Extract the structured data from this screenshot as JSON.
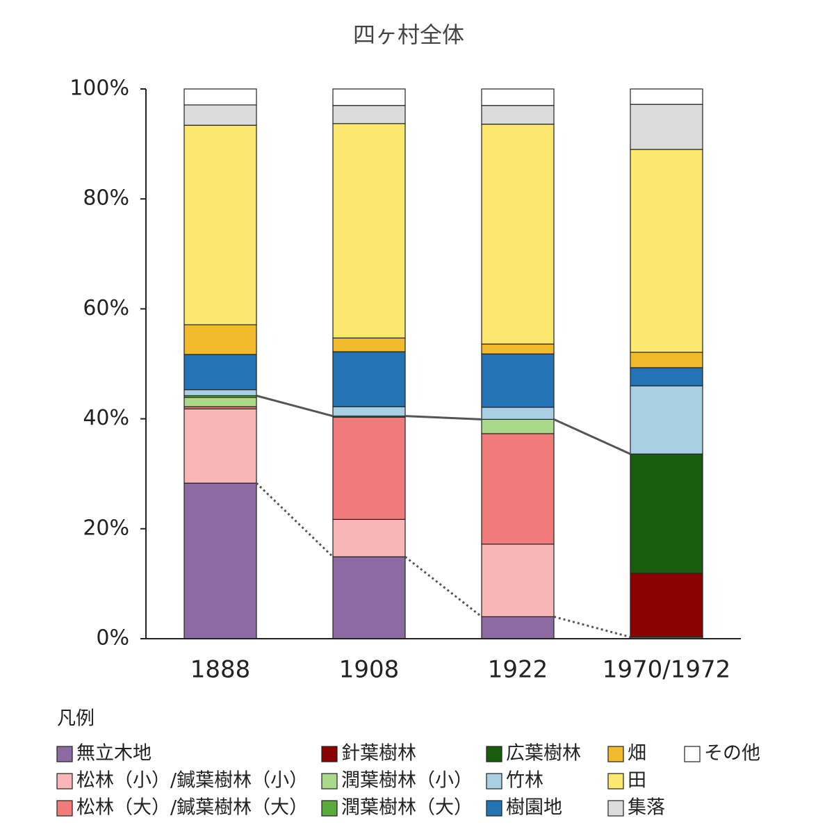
{
  "chart_data": {
    "type": "stacked_bar",
    "title": "四ヶ村全体",
    "legend_title": "凡例",
    "categories": [
      "1888",
      "1908",
      "1922",
      "1970/1972"
    ],
    "ylim": [
      0,
      100
    ],
    "yticks": [
      {
        "value": 0,
        "label": "0%"
      },
      {
        "value": 20,
        "label": "20%"
      },
      {
        "value": 40,
        "label": "40%"
      },
      {
        "value": 60,
        "label": "60%"
      },
      {
        "value": 80,
        "label": "80%"
      },
      {
        "value": 100,
        "label": "100%"
      }
    ],
    "series": [
      {
        "name": "無立木地",
        "color": "#8e6aa3",
        "values": [
          28.3,
          14.9,
          4.0,
          0.3
        ]
      },
      {
        "name": "松林（小）/鍼葉樹林（小）",
        "color": "#f9b6b6",
        "values": [
          13.5,
          6.8,
          13.2,
          0
        ]
      },
      {
        "name": "松林（大）/鍼葉樹林（大）",
        "color": "#f07b7b",
        "values": [
          0.4,
          18.6,
          20.1,
          0
        ]
      },
      {
        "name": "針葉樹林",
        "color": "#8b0000",
        "values": [
          0,
          0,
          0,
          11.6
        ]
      },
      {
        "name": "潤葉樹林（小）",
        "color": "#a9d98b",
        "values": [
          1.7,
          0.2,
          2.6,
          0
        ]
      },
      {
        "name": "潤葉樹林（大）",
        "color": "#5aac3a",
        "values": [
          0.3,
          0,
          0,
          0
        ]
      },
      {
        "name": "広葉樹林",
        "color": "#1a5c0e",
        "values": [
          0,
          0,
          0,
          21.7
        ]
      },
      {
        "name": "竹林",
        "color": "#a9cfe4",
        "values": [
          1.1,
          1.7,
          2.2,
          12.4
        ]
      },
      {
        "name": "樹園地",
        "color": "#2474b5",
        "values": [
          6.4,
          10.0,
          9.7,
          3.3
        ]
      },
      {
        "name": "畑",
        "color": "#f2bb2e",
        "values": [
          5.4,
          2.5,
          1.8,
          2.8
        ]
      },
      {
        "name": "田",
        "color": "#fce86e",
        "values": [
          36.3,
          39.0,
          40.0,
          36.9
        ]
      },
      {
        "name": "集落",
        "color": "#dcdcdc",
        "values": [
          3.7,
          3.3,
          3.4,
          8.2
        ]
      },
      {
        "name": "その他",
        "color": "#ffffff",
        "values": [
          2.9,
          3.0,
          3.0,
          2.8
        ]
      }
    ]
  }
}
